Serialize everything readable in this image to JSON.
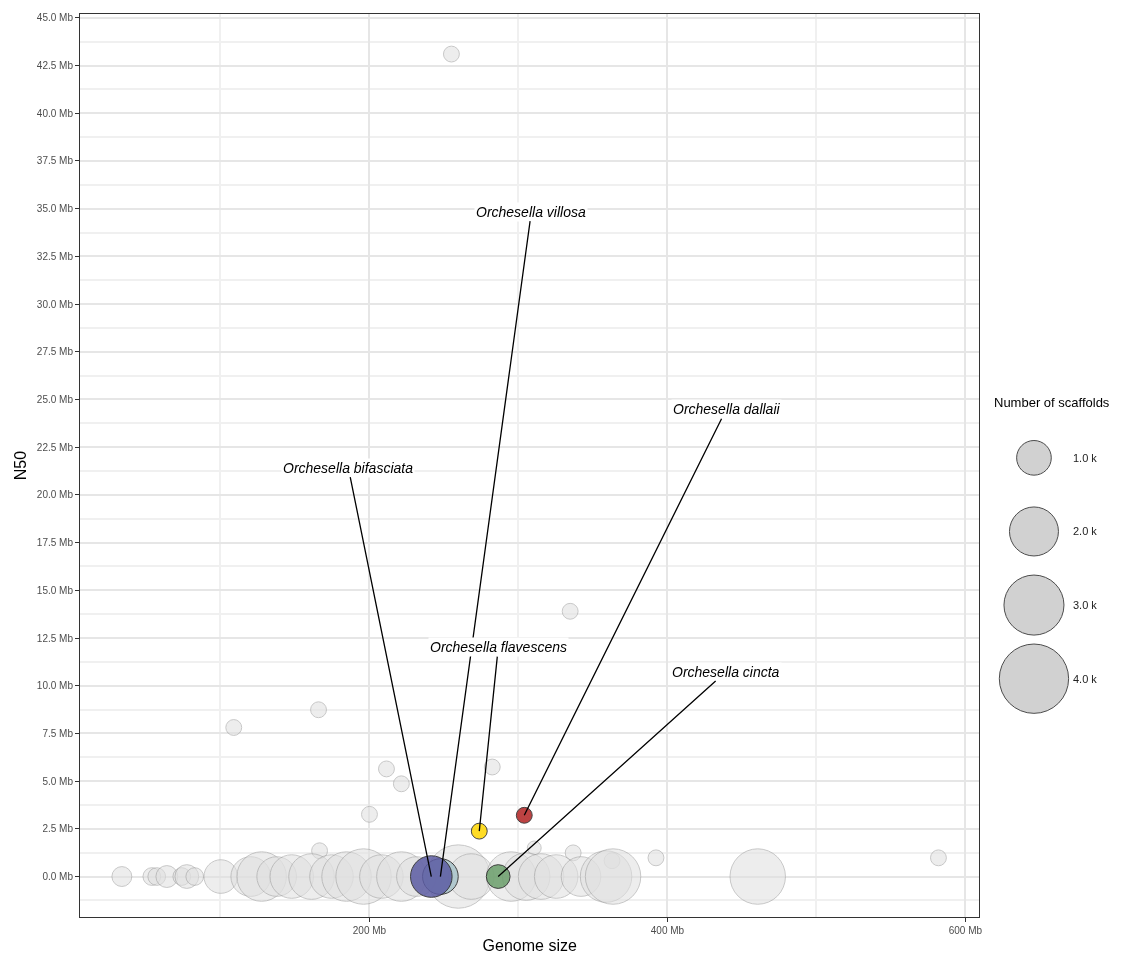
{
  "chart_data": {
    "type": "bubble",
    "xlabel": "Genome size",
    "ylabel": "N50",
    "legend_title": "Number of scaffolds",
    "grid": true,
    "xlim": [
      5.7,
      609.4
    ],
    "ylim": [
      -2.12,
      45.2
    ],
    "xticks": [
      {
        "value": 200,
        "label": "200 Mb"
      },
      {
        "value": 400,
        "label": "400 Mb"
      },
      {
        "value": 600,
        "label": "600 Mb"
      }
    ],
    "yticks": [
      {
        "value": 0,
        "label": "0.0 Mb"
      },
      {
        "value": 2.5,
        "label": "2.5 Mb"
      },
      {
        "value": 5,
        "label": "5.0 Mb"
      },
      {
        "value": 7.5,
        "label": "7.5 Mb"
      },
      {
        "value": 10,
        "label": "10.0 Mb"
      },
      {
        "value": 12.5,
        "label": "12.5 Mb"
      },
      {
        "value": 15,
        "label": "15.0 Mb"
      },
      {
        "value": 17.5,
        "label": "17.5 Mb"
      },
      {
        "value": 20,
        "label": "20.0 Mb"
      },
      {
        "value": 22.5,
        "label": "22.5 Mb"
      },
      {
        "value": 25,
        "label": "25.0 Mb"
      },
      {
        "value": 27.5,
        "label": "27.5 Mb"
      },
      {
        "value": 30,
        "label": "30.0 Mb"
      },
      {
        "value": 32.5,
        "label": "32.5 Mb"
      },
      {
        "value": 35,
        "label": "35.0 Mb"
      },
      {
        "value": 37.5,
        "label": "37.5 Mb"
      },
      {
        "value": 40,
        "label": "40.0 Mb"
      },
      {
        "value": 42.5,
        "label": "42.5 Mb"
      },
      {
        "value": 45,
        "label": "45.0 Mb"
      }
    ],
    "size_legend": [
      {
        "value": 1000,
        "label": "1.0 k"
      },
      {
        "value": 2000,
        "label": "2.0 k"
      },
      {
        "value": 3000,
        "label": "3.0 k"
      },
      {
        "value": 4000,
        "label": "4.0 k"
      }
    ],
    "series": [
      {
        "color": "#e0e0e0",
        "x": [
          255.0,
          334.7,
          165.8,
          108.9,
          211.4,
          221.4,
          282.4,
          200.0,
          392.3,
          581.9,
          166.5,
          336.7,
          310.6,
          362.8,
          33.8,
          53.9,
          57.2,
          64.0,
          74.0,
          77.4,
          82.7,
          100.2,
          120.3,
          127.6,
          137.7,
          147.8,
          161.1,
          174.5,
          184.6,
          196.0,
          208.0,
          221.4,
          231.5,
          259.6,
          268.3,
          295.1,
          305.2,
          315.2,
          325.3,
          342.0,
          358.8,
          363.5,
          460.6
        ],
        "values": [
          43.1,
          13.9,
          8.74,
          7.81,
          5.64,
          4.86,
          5.74,
          3.26,
          0.98,
          0.98,
          1.35,
          1.24,
          1.5,
          0.83,
          0,
          0,
          0,
          0,
          0,
          0,
          0,
          0,
          0,
          0,
          0,
          0,
          0,
          0,
          0,
          0,
          0,
          0,
          0,
          0,
          0,
          0,
          0,
          0,
          0,
          0,
          0,
          0,
          0
        ],
        "sizes": [
          210,
          210,
          210,
          210,
          210,
          210,
          210,
          210,
          210,
          210,
          210,
          210,
          160,
          210,
          330,
          260,
          260,
          400,
          260,
          470,
          260,
          940,
          1310,
          2040,
          1310,
          1580,
          1730,
          1580,
          2040,
          2560,
          1580,
          2040,
          1310,
          3340,
          1730,
          2040,
          1880,
          1730,
          1580,
          1310,
          2210,
          2560,
          2560
        ]
      },
      {
        "color": "#a9c3ca",
        "x": [
          247.6
        ],
        "values": [
          0
        ],
        "sizes": [
          1060
        ]
      },
      {
        "color": "#5c5ca3",
        "x": [
          241.5
        ],
        "values": [
          0
        ],
        "sizes": [
          1440
        ]
      },
      {
        "color": "#ffd700",
        "x": [
          273.7
        ],
        "values": [
          2.38
        ],
        "sizes": [
          210
        ]
      },
      {
        "color": "#b22222",
        "x": [
          303.9
        ],
        "values": [
          3.21
        ],
        "sizes": [
          210
        ]
      },
      {
        "color": "#6b9f6b",
        "x": [
          286.4
        ],
        "values": [
          0
        ],
        "sizes": [
          470
        ]
      }
    ],
    "annotations": [
      {
        "text": "Orchesella villosa",
        "x": 247.6,
        "y": 0
      },
      {
        "text": "Orchesella bifasciata",
        "x": 241.5,
        "y": 0
      },
      {
        "text": "Orchesella flavescens",
        "x": 273.7,
        "y": 2.38
      },
      {
        "text": "Orchesella dallaii",
        "x": 303.9,
        "y": 3.21
      },
      {
        "text": "Orchesella cincta",
        "x": 286.4,
        "y": 0
      }
    ]
  }
}
